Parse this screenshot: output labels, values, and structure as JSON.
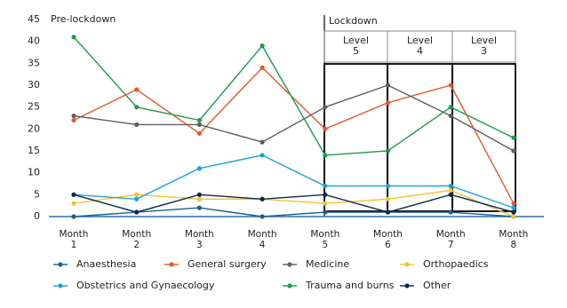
{
  "chart_data": {
    "type": "line",
    "categories": [
      "Month 1",
      "Month 2",
      "Month 3",
      "Month 4",
      "Month 5",
      "Month 6",
      "Month 7",
      "Month 8"
    ],
    "ylim": [
      0,
      45
    ],
    "yticks": [
      0,
      5,
      10,
      15,
      20,
      25,
      30,
      35,
      40,
      45
    ],
    "annotations": {
      "pre": "Pre-lockdown",
      "lockdown": "Lockdown",
      "levels": [
        "Level 5",
        "Level 4",
        "Level 3"
      ]
    },
    "series": [
      {
        "name": "Anaesthesia",
        "color": "#1f5f8b",
        "values": [
          0,
          1,
          2,
          0,
          1,
          1,
          1,
          0
        ]
      },
      {
        "name": "General surgery",
        "color": "#e8582a",
        "values": [
          22,
          29,
          19,
          34,
          20,
          26,
          30,
          3
        ]
      },
      {
        "name": "Medicine",
        "color": "#5f5f5f",
        "values": [
          23,
          21,
          21,
          17,
          25,
          30,
          23,
          15
        ]
      },
      {
        "name": "Orthopaedics",
        "color": "#f2c230",
        "values": [
          3,
          5,
          4,
          4,
          3,
          4,
          6,
          0
        ]
      },
      {
        "name": "Obstetrics and Gynaecology",
        "color": "#1aa3d9",
        "values": [
          5,
          4,
          11,
          14,
          7,
          7,
          7,
          2
        ]
      },
      {
        "name": "Trauma and burns",
        "color": "#1e9a4a",
        "values": [
          41,
          25,
          22,
          39,
          14,
          15,
          25,
          18
        ]
      },
      {
        "name": "Other",
        "color": "#0d2a4a",
        "values": [
          5,
          1,
          5,
          4,
          5,
          1,
          5,
          1
        ]
      }
    ]
  }
}
